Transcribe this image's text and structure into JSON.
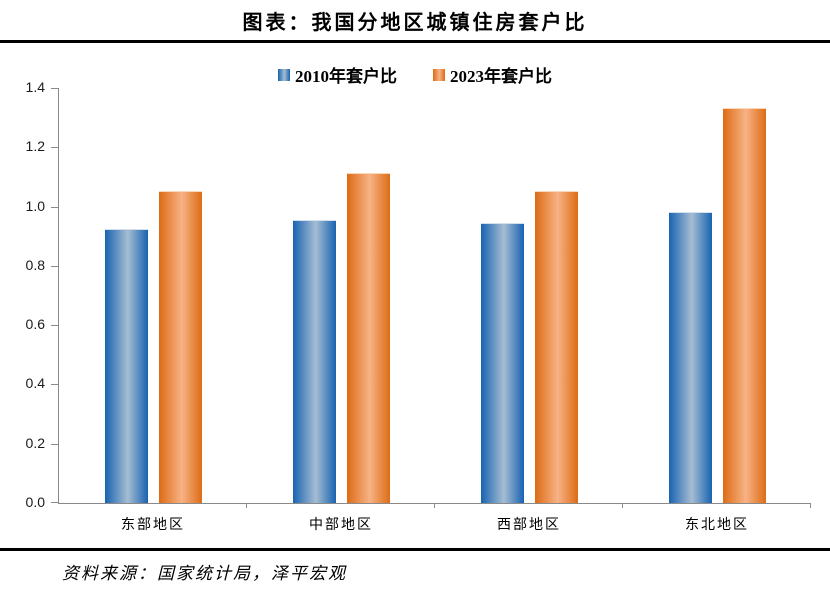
{
  "header": {
    "title": "图表：我国分地区城镇住房套户比"
  },
  "footer": {
    "source": "资料来源：国家统计局，泽平宏观"
  },
  "colors": {
    "divider": "#000000",
    "axis_line": "#898989",
    "text": "#000000",
    "background": "#ffffff"
  },
  "chart_data": {
    "type": "bar",
    "title": "图表：我国分地区城镇住房套户比",
    "categories": [
      "东部地区",
      "中部地区",
      "西部地区",
      "东北地区"
    ],
    "series": [
      {
        "name": "2010年套户比",
        "values": [
          0.92,
          0.95,
          0.94,
          0.98
        ],
        "color_edge": "#1863b2",
        "color_mid": "#a6bdd2",
        "color_highlight": "#d3dfeb"
      },
      {
        "name": "2023年套户比",
        "values": [
          1.05,
          1.11,
          1.05,
          1.33
        ],
        "color_edge": "#dd6c15",
        "color_mid": "#f7b285",
        "color_highlight": "#fbd9b8"
      }
    ],
    "xlabel": "",
    "ylabel": "",
    "ylim": [
      0,
      1.4
    ],
    "y_ticks": [
      0,
      0.2,
      0.4,
      0.6,
      0.8,
      1.0,
      1.2,
      1.4
    ],
    "grid": false,
    "legend_position": "top-center",
    "source_note": "资料来源：国家统计局，泽平宏观"
  }
}
